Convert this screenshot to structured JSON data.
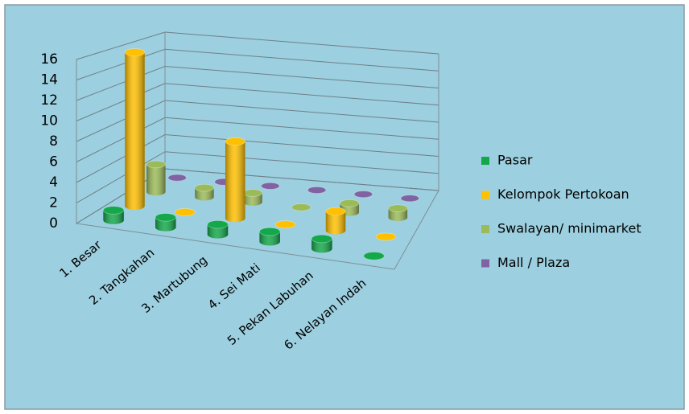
{
  "chart_data": {
    "type": "bar3d",
    "categories": [
      "1. Besar",
      "2. Tangkahan",
      "3. Martubung",
      "4. Sei Mati",
      "5. Pekan Labuhan",
      "6. Nelayan Indah"
    ],
    "series": [
      {
        "name": "Pasar",
        "color": "#14a84b",
        "values": [
          1,
          1,
          1,
          1,
          1,
          0
        ]
      },
      {
        "name": "Kelompok Pertokoan",
        "color": "#ffc000",
        "values": [
          16,
          0,
          8,
          0,
          2,
          0
        ]
      },
      {
        "name": "Swalayan/ minimarket",
        "color": "#9bbb59",
        "values": [
          3,
          1,
          1,
          0,
          1,
          1
        ]
      },
      {
        "name": "Mall / Plaza",
        "color": "#8064a2",
        "values": [
          0,
          0,
          0,
          0,
          0,
          0
        ]
      }
    ],
    "ylim": [
      0,
      16
    ],
    "yticks": [
      0,
      2,
      4,
      6,
      8,
      10,
      12,
      14,
      16
    ],
    "grid": true
  }
}
